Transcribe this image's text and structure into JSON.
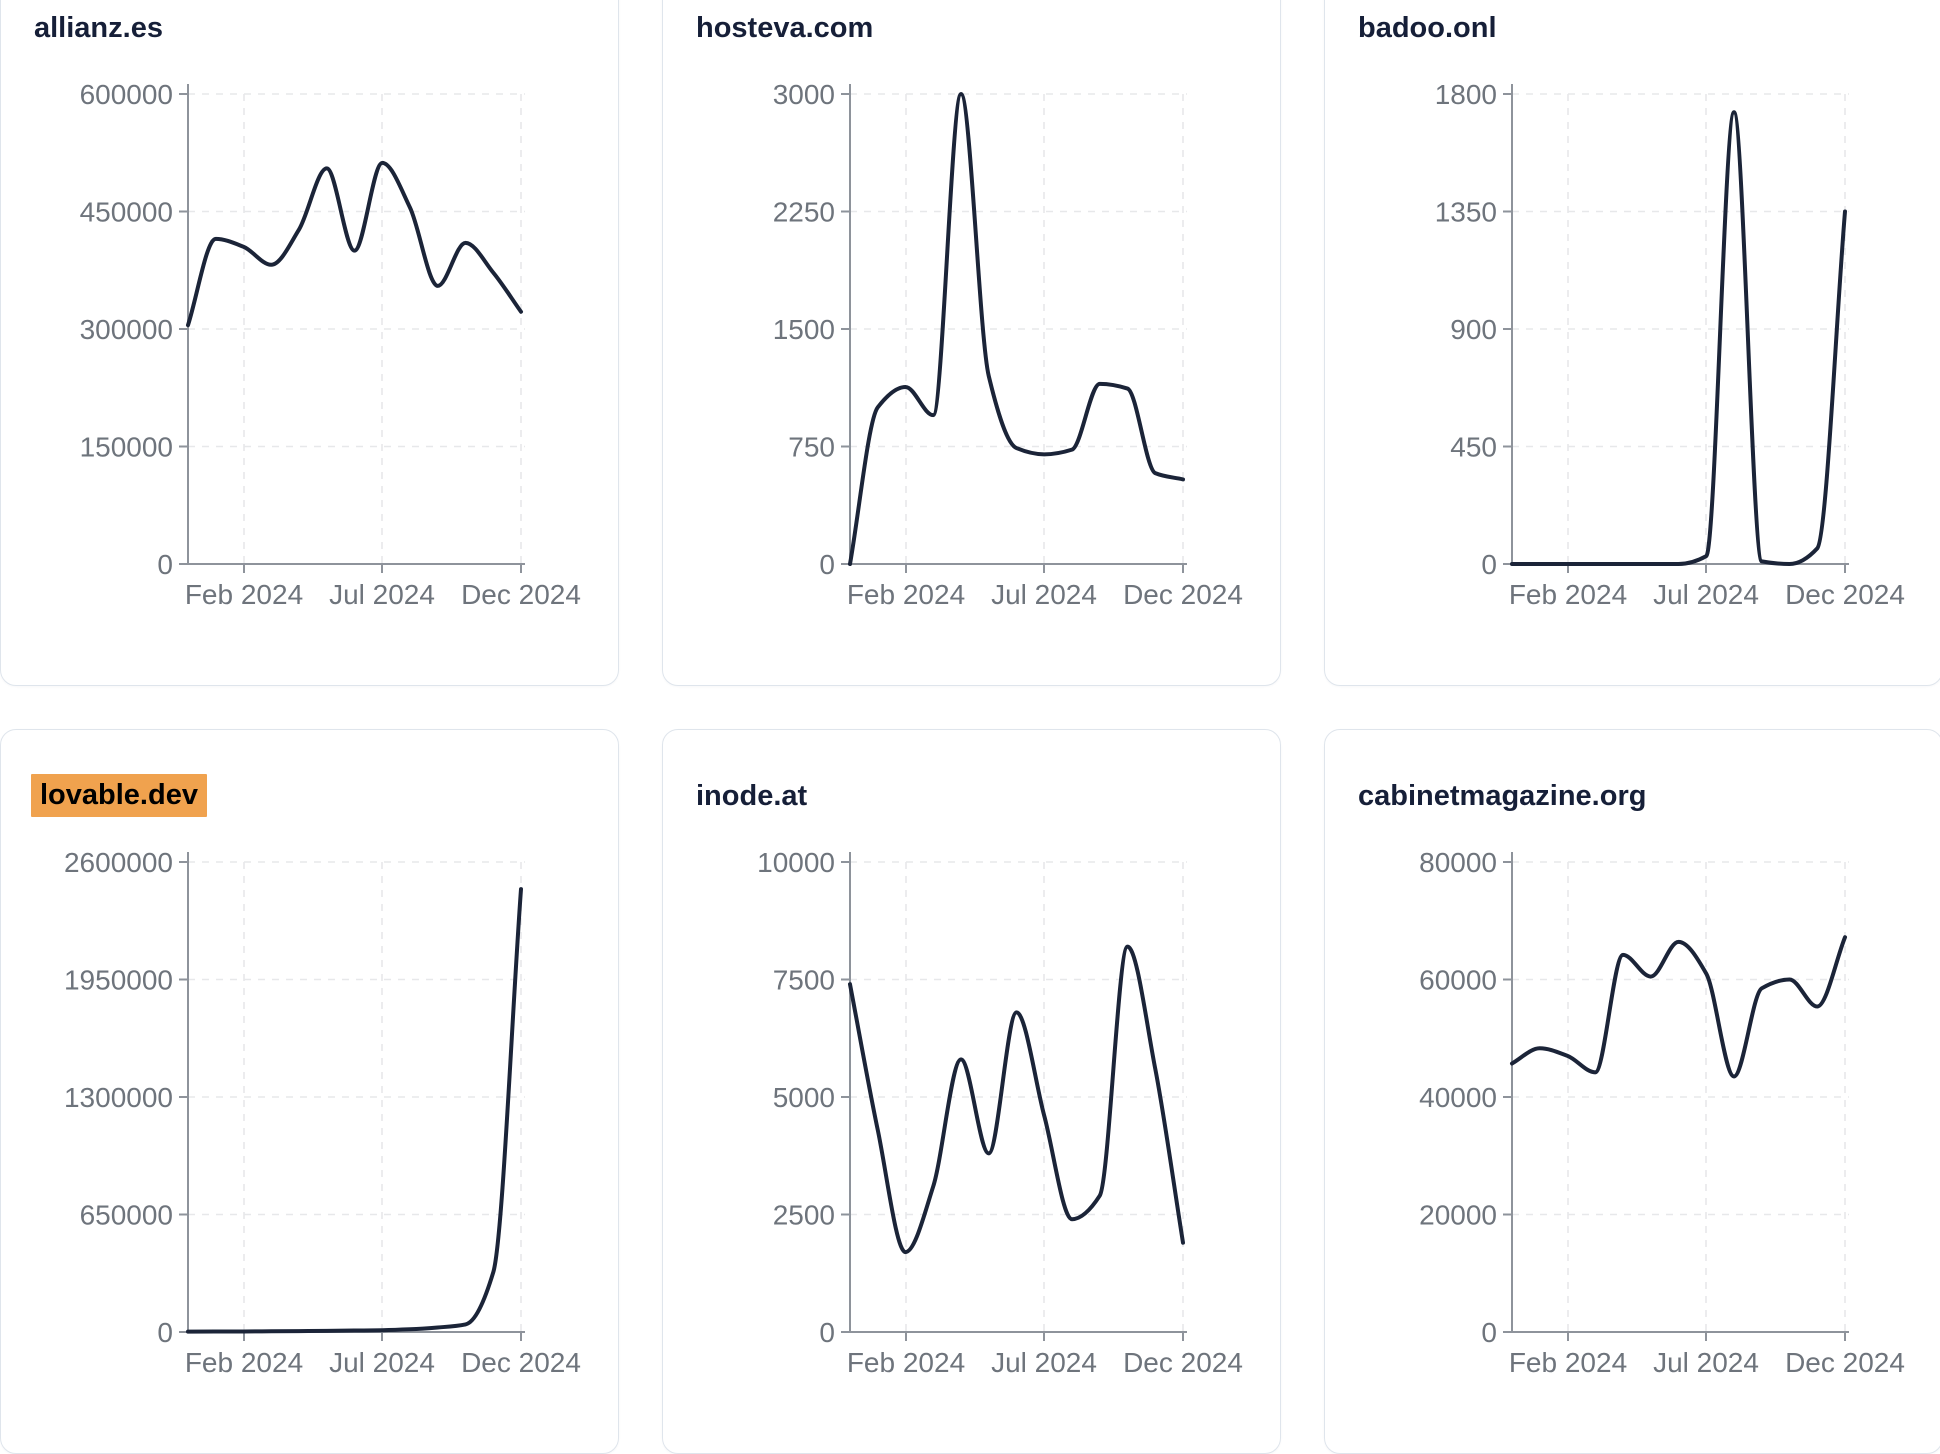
{
  "styles": {
    "background": "#FFFFFF",
    "card_border": "#DFE5EC",
    "title_color": "#161F38",
    "highlight_color": "#F0A24E",
    "line_color": "#1B2438",
    "axis_color": "#8E939B",
    "label_color": "#6E747C",
    "grid_color": "#E7E8EA"
  },
  "chart_data": [
    {
      "type": "line",
      "title": "allianz.es",
      "title_highlighted": false,
      "x": [
        "Dec 2023",
        "Jan 2024",
        "Feb 2024",
        "Mar 2024",
        "Apr 2024",
        "May 2024",
        "Jun 2024",
        "Jul 2024",
        "Aug 2024",
        "Sep 2024",
        "Oct 2024",
        "Nov 2024",
        "Dec 2024"
      ],
      "y": [
        305000,
        415000,
        405000,
        382000,
        427000,
        505000,
        400000,
        512000,
        455000,
        355000,
        410000,
        372000,
        322000
      ],
      "ylim": [
        0,
        600000
      ],
      "y_ticks": [
        0,
        150000,
        300000,
        450000,
        600000
      ],
      "x_tick_labels": [
        "Feb 2024",
        "Jul 2024",
        "Dec 2024"
      ],
      "grid": true,
      "legend": "none"
    },
    {
      "type": "line",
      "title": "hosteva.com",
      "title_highlighted": false,
      "x": [
        "Dec 2023",
        "Jan 2024",
        "Feb 2024",
        "Mar 2024",
        "Apr 2024",
        "May 2024",
        "Jun 2024",
        "Jul 2024",
        "Aug 2024",
        "Sep 2024",
        "Oct 2024",
        "Nov 2024",
        "Dec 2024"
      ],
      "y": [
        0,
        1000,
        1130,
        950,
        3000,
        1200,
        740,
        700,
        730,
        1150,
        1120,
        580,
        540
      ],
      "ylim": [
        0,
        3000
      ],
      "y_ticks": [
        0,
        750,
        1500,
        2250,
        3000
      ],
      "x_tick_labels": [
        "Feb 2024",
        "Jul 2024",
        "Dec 2024"
      ],
      "grid": true,
      "legend": "none"
    },
    {
      "type": "line",
      "title": "badoo.onl",
      "title_highlighted": false,
      "x": [
        "Dec 2023",
        "Jan 2024",
        "Feb 2024",
        "Mar 2024",
        "Apr 2024",
        "May 2024",
        "Jun 2024",
        "Jul 2024",
        "Aug 2024",
        "Sep 2024",
        "Oct 2024",
        "Nov 2024",
        "Dec 2024"
      ],
      "y": [
        0,
        0,
        0,
        0,
        0,
        0,
        0,
        30,
        1730,
        10,
        0,
        60,
        1350
      ],
      "ylim": [
        0,
        1800
      ],
      "y_ticks": [
        0,
        450,
        900,
        1350,
        1800
      ],
      "x_tick_labels": [
        "Feb 2024",
        "Jul 2024",
        "Dec 2024"
      ],
      "grid": true,
      "legend": "none"
    },
    {
      "type": "line",
      "title": "lovable.dev",
      "title_highlighted": true,
      "x": [
        "Dec 2023",
        "Jan 2024",
        "Feb 2024",
        "Mar 2024",
        "Apr 2024",
        "May 2024",
        "Jun 2024",
        "Jul 2024",
        "Aug 2024",
        "Sep 2024",
        "Oct 2024",
        "Nov 2024",
        "Dec 2024"
      ],
      "y": [
        2000,
        2500,
        3000,
        4000,
        5000,
        6000,
        8000,
        10000,
        15000,
        25000,
        42000,
        330000,
        2450000
      ],
      "ylim": [
        0,
        2600000
      ],
      "y_ticks": [
        0,
        650000,
        1300000,
        1950000,
        2600000
      ],
      "x_tick_labels": [
        "Feb 2024",
        "Jul 2024",
        "Dec 2024"
      ],
      "grid": true,
      "legend": "none"
    },
    {
      "type": "line",
      "title": "inode.at",
      "title_highlighted": false,
      "x": [
        "Dec 2023",
        "Jan 2024",
        "Feb 2024",
        "Mar 2024",
        "Apr 2024",
        "May 2024",
        "Jun 2024",
        "Jul 2024",
        "Aug 2024",
        "Sep 2024",
        "Oct 2024",
        "Nov 2024",
        "Dec 2024"
      ],
      "y": [
        7400,
        4300,
        1700,
        3100,
        5800,
        3800,
        6800,
        4600,
        2400,
        2900,
        8200,
        5600,
        1900
      ],
      "ylim": [
        0,
        10000
      ],
      "y_ticks": [
        0,
        2500,
        5000,
        7500,
        10000
      ],
      "x_tick_labels": [
        "Feb 2024",
        "Jul 2024",
        "Dec 2024"
      ],
      "grid": true,
      "legend": "none"
    },
    {
      "type": "line",
      "title": "cabinetmagazine.org",
      "title_highlighted": false,
      "x": [
        "Dec 2023",
        "Jan 2024",
        "Feb 2024",
        "Mar 2024",
        "Apr 2024",
        "May 2024",
        "Jun 2024",
        "Jul 2024",
        "Aug 2024",
        "Sep 2024",
        "Oct 2024",
        "Nov 2024",
        "Dec 2024"
      ],
      "y": [
        45700,
        48300,
        47000,
        44200,
        64200,
        60500,
        66400,
        61000,
        43500,
        58500,
        60000,
        55400,
        67200
      ],
      "ylim": [
        0,
        80000
      ],
      "y_ticks": [
        0,
        20000,
        40000,
        60000,
        80000
      ],
      "x_tick_labels": [
        "Feb 2024",
        "Jul 2024",
        "Dec 2024"
      ],
      "grid": true,
      "legend": "none"
    }
  ]
}
